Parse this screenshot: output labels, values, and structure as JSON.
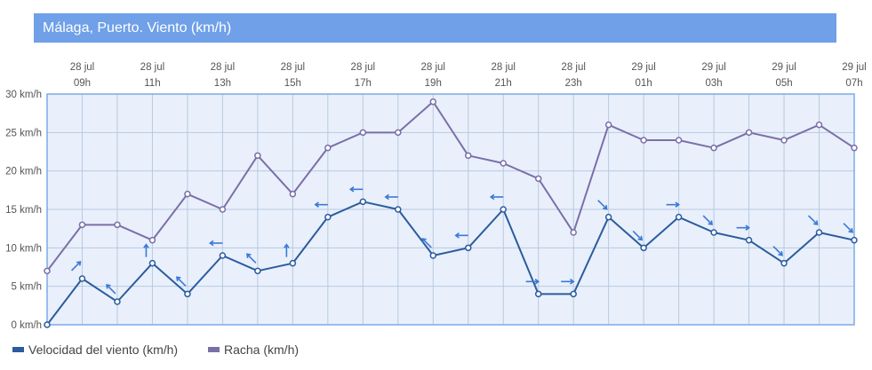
{
  "title": "Málaga, Puerto. Viento (km/h)",
  "chart_data": {
    "type": "line",
    "x": [
      {
        "date": "28 jul",
        "hour": "08h"
      },
      {
        "date": "28 jul",
        "hour": "09h"
      },
      {
        "date": "28 jul",
        "hour": "10h"
      },
      {
        "date": "28 jul",
        "hour": "11h"
      },
      {
        "date": "28 jul",
        "hour": "12h"
      },
      {
        "date": "28 jul",
        "hour": "13h"
      },
      {
        "date": "28 jul",
        "hour": "14h"
      },
      {
        "date": "28 jul",
        "hour": "15h"
      },
      {
        "date": "28 jul",
        "hour": "16h"
      },
      {
        "date": "28 jul",
        "hour": "17h"
      },
      {
        "date": "28 jul",
        "hour": "18h"
      },
      {
        "date": "28 jul",
        "hour": "19h"
      },
      {
        "date": "28 jul",
        "hour": "20h"
      },
      {
        "date": "28 jul",
        "hour": "21h"
      },
      {
        "date": "28 jul",
        "hour": "22h"
      },
      {
        "date": "28 jul",
        "hour": "23h"
      },
      {
        "date": "29 jul",
        "hour": "00h"
      },
      {
        "date": "29 jul",
        "hour": "01h"
      },
      {
        "date": "29 jul",
        "hour": "02h"
      },
      {
        "date": "29 jul",
        "hour": "03h"
      },
      {
        "date": "29 jul",
        "hour": "04h"
      },
      {
        "date": "29 jul",
        "hour": "05h"
      },
      {
        "date": "29 jul",
        "hour": "06h"
      },
      {
        "date": "29 jul",
        "hour": "07h"
      }
    ],
    "x_tick_labels": [
      {
        "date": "28 jul",
        "hour": "09h"
      },
      {
        "date": "28 jul",
        "hour": "11h"
      },
      {
        "date": "28 jul",
        "hour": "13h"
      },
      {
        "date": "28 jul",
        "hour": "15h"
      },
      {
        "date": "28 jul",
        "hour": "17h"
      },
      {
        "date": "28 jul",
        "hour": "19h"
      },
      {
        "date": "28 jul",
        "hour": "21h"
      },
      {
        "date": "28 jul",
        "hour": "23h"
      },
      {
        "date": "29 jul",
        "hour": "01h"
      },
      {
        "date": "29 jul",
        "hour": "03h"
      },
      {
        "date": "29 jul",
        "hour": "05h"
      },
      {
        "date": "29 jul",
        "hour": "07h"
      }
    ],
    "y_tick_labels": [
      "0 km/h",
      "5 km/h",
      "10 km/h",
      "15 km/h",
      "20 km/h",
      "25 km/h",
      "30 km/h"
    ],
    "ylim": [
      0,
      30
    ],
    "grid": true,
    "legend_position": "bottom-left",
    "series": [
      {
        "name": "Velocidad del viento (km/h)",
        "color": "#2b5c9e",
        "values": [
          0,
          6,
          3,
          8,
          4,
          9,
          7,
          8,
          14,
          16,
          15,
          9,
          10,
          15,
          4,
          4,
          14,
          10,
          14,
          12,
          11,
          8,
          12,
          11
        ],
        "direction_arrows": [
          "",
          "NE",
          "NW",
          "N",
          "NW",
          "W",
          "NW",
          "N",
          "W",
          "W",
          "W",
          "NW",
          "W",
          "W",
          "E",
          "E",
          "SE",
          "SE",
          "E",
          "SE",
          "E",
          "SE",
          "SE",
          "SE"
        ]
      },
      {
        "name": "Racha (km/h)",
        "color": "#7b6fa8",
        "values": [
          7,
          13,
          13,
          11,
          17,
          15,
          22,
          17,
          23,
          25,
          25,
          29,
          22,
          21,
          19,
          12,
          26,
          24,
          24,
          23,
          25,
          24,
          26,
          23
        ]
      }
    ]
  },
  "colors": {
    "title_bar": "#6fa0e8",
    "plot_background": "#e9f0fb",
    "plot_border": "#7aaae8",
    "grid": "#b8c9e0",
    "arrow": "#3a78d6"
  }
}
